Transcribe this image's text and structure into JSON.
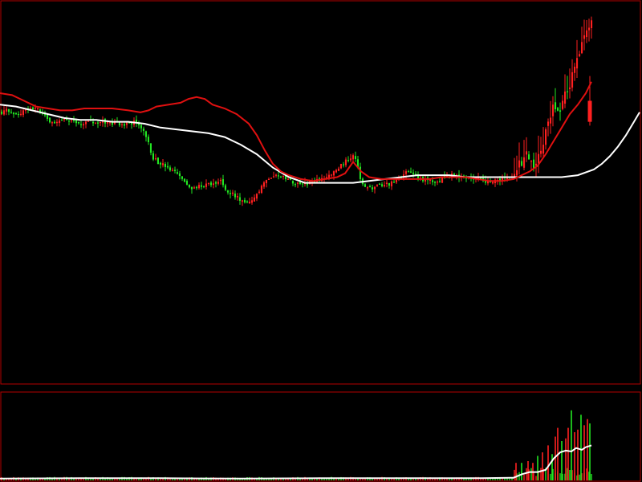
{
  "chart_data": {
    "type": "candlestick",
    "colors": {
      "background": "#000000",
      "frame": "#b40000",
      "up": "#ff2020",
      "down": "#22e622",
      "ma_long": "#ffffff",
      "ma_short": "#e01010",
      "volume_avg": "#ffffff"
    },
    "grid": false,
    "legend": false,
    "price_ylim": [
      0,
      100
    ],
    "volume_ylim": [
      0,
      100
    ],
    "bar_count": 246,
    "close_anchors": [
      [
        0,
        71
      ],
      [
        10,
        71.5
      ],
      [
        20,
        70.5
      ],
      [
        30,
        71.5
      ],
      [
        40,
        72
      ],
      [
        45,
        72.5
      ],
      [
        50,
        71
      ],
      [
        60,
        69
      ],
      [
        70,
        68.5
      ],
      [
        80,
        69
      ],
      [
        90,
        69
      ],
      [
        100,
        68
      ],
      [
        110,
        68.5
      ],
      [
        120,
        68
      ],
      [
        130,
        68.5
      ],
      [
        140,
        68
      ],
      [
        150,
        68
      ],
      [
        160,
        68
      ],
      [
        170,
        68.5
      ],
      [
        180,
        66
      ],
      [
        185,
        63
      ],
      [
        190,
        59
      ],
      [
        200,
        57.5
      ],
      [
        215,
        55.5
      ],
      [
        225,
        54
      ],
      [
        235,
        51
      ],
      [
        245,
        51.5
      ],
      [
        255,
        52
      ],
      [
        265,
        52
      ],
      [
        275,
        53
      ],
      [
        285,
        50
      ],
      [
        295,
        49
      ],
      [
        305,
        47
      ],
      [
        315,
        47.5
      ],
      [
        325,
        51
      ],
      [
        335,
        54
      ],
      [
        345,
        55
      ],
      [
        355,
        53.5
      ],
      [
        365,
        52.5
      ],
      [
        375,
        52
      ],
      [
        385,
        52.5
      ],
      [
        395,
        53
      ],
      [
        405,
        54
      ],
      [
        415,
        55
      ],
      [
        425,
        57
      ],
      [
        435,
        59
      ],
      [
        440,
        60
      ],
      [
        445,
        57.5
      ],
      [
        450,
        52
      ],
      [
        460,
        51
      ],
      [
        470,
        51.5
      ],
      [
        480,
        52
      ],
      [
        490,
        52.5
      ],
      [
        500,
        54
      ],
      [
        505,
        55
      ],
      [
        515,
        55
      ],
      [
        525,
        53.5
      ],
      [
        535,
        53
      ],
      [
        545,
        53
      ],
      [
        555,
        54
      ],
      [
        565,
        54.5
      ],
      [
        575,
        54
      ],
      [
        585,
        54
      ],
      [
        595,
        53.5
      ],
      [
        605,
        53
      ],
      [
        615,
        53
      ],
      [
        625,
        53.5
      ],
      [
        635,
        54
      ],
      [
        640,
        55
      ],
      [
        645,
        56
      ],
      [
        650,
        58
      ],
      [
        655,
        59.5
      ],
      [
        660,
        58
      ],
      [
        665,
        57
      ],
      [
        670,
        59
      ],
      [
        675,
        62
      ],
      [
        680,
        66
      ],
      [
        685,
        70
      ],
      [
        690,
        74
      ],
      [
        695,
        72
      ],
      [
        700,
        73
      ],
      [
        705,
        76
      ],
      [
        710,
        79
      ],
      [
        715,
        82
      ],
      [
        720,
        86
      ],
      [
        725,
        90
      ],
      [
        730,
        93
      ],
      [
        735,
        95
      ]
    ],
    "ma_short_anchors": [
      [
        0,
        76
      ],
      [
        15,
        75.5
      ],
      [
        30,
        74
      ],
      [
        45,
        72.5
      ],
      [
        60,
        72
      ],
      [
        75,
        71.5
      ],
      [
        90,
        71.5
      ],
      [
        105,
        72
      ],
      [
        120,
        72
      ],
      [
        140,
        72
      ],
      [
        160,
        71.5
      ],
      [
        175,
        71
      ],
      [
        185,
        71.5
      ],
      [
        195,
        72.5
      ],
      [
        210,
        73
      ],
      [
        225,
        73.5
      ],
      [
        235,
        74.5
      ],
      [
        245,
        75
      ],
      [
        255,
        74.5
      ],
      [
        265,
        73
      ],
      [
        280,
        72
      ],
      [
        295,
        70.5
      ],
      [
        310,
        68
      ],
      [
        320,
        65
      ],
      [
        330,
        61
      ],
      [
        340,
        57.5
      ],
      [
        350,
        55.5
      ],
      [
        360,
        54.5
      ],
      [
        375,
        53.5
      ],
      [
        390,
        53
      ],
      [
        405,
        53.5
      ],
      [
        420,
        54
      ],
      [
        430,
        55
      ],
      [
        440,
        58
      ],
      [
        450,
        55.5
      ],
      [
        460,
        54
      ],
      [
        475,
        53.5
      ],
      [
        490,
        53.5
      ],
      [
        505,
        53.5
      ],
      [
        520,
        53.5
      ],
      [
        535,
        53.5
      ],
      [
        550,
        54
      ],
      [
        565,
        54
      ],
      [
        580,
        54
      ],
      [
        595,
        53.5
      ],
      [
        610,
        53
      ],
      [
        625,
        53
      ],
      [
        640,
        53.5
      ],
      [
        650,
        54.5
      ],
      [
        660,
        55.5
      ],
      [
        670,
        57
      ],
      [
        680,
        60
      ],
      [
        690,
        63.5
      ],
      [
        700,
        67
      ],
      [
        710,
        70.5
      ],
      [
        720,
        73
      ],
      [
        730,
        76
      ],
      [
        737,
        79
      ]
    ],
    "ma_long_anchors": [
      [
        0,
        73
      ],
      [
        20,
        72.5
      ],
      [
        40,
        71.5
      ],
      [
        60,
        70.5
      ],
      [
        80,
        69.5
      ],
      [
        100,
        69
      ],
      [
        120,
        69
      ],
      [
        140,
        68.5
      ],
      [
        160,
        68.5
      ],
      [
        180,
        68
      ],
      [
        200,
        67
      ],
      [
        220,
        66.5
      ],
      [
        240,
        66
      ],
      [
        260,
        65.5
      ],
      [
        280,
        64.5
      ],
      [
        300,
        62.5
      ],
      [
        320,
        60
      ],
      [
        340,
        56.5
      ],
      [
        360,
        54
      ],
      [
        380,
        52.5
      ],
      [
        400,
        52.5
      ],
      [
        420,
        52.5
      ],
      [
        440,
        52.5
      ],
      [
        460,
        53
      ],
      [
        480,
        53.5
      ],
      [
        500,
        54
      ],
      [
        520,
        54.5
      ],
      [
        540,
        54.5
      ],
      [
        560,
        54.5
      ],
      [
        580,
        54
      ],
      [
        600,
        54
      ],
      [
        620,
        54
      ],
      [
        640,
        54
      ],
      [
        660,
        54
      ],
      [
        680,
        54
      ],
      [
        700,
        54
      ],
      [
        720,
        54.5
      ],
      [
        740,
        56
      ],
      [
        750,
        57.5
      ],
      [
        760,
        59.5
      ],
      [
        770,
        62
      ],
      [
        780,
        65
      ],
      [
        790,
        68.5
      ],
      [
        797,
        71
      ]
    ],
    "volume_base": 2,
    "volume_spikes": [
      [
        643,
        20
      ],
      [
        650,
        20
      ],
      [
        658,
        22
      ],
      [
        664,
        20
      ],
      [
        670,
        28
      ],
      [
        676,
        32
      ],
      [
        683,
        40
      ],
      [
        688,
        30
      ],
      [
        692,
        50
      ],
      [
        695,
        60
      ],
      [
        700,
        45
      ],
      [
        705,
        48
      ],
      [
        708,
        60
      ],
      [
        712,
        80
      ],
      [
        716,
        55
      ],
      [
        720,
        58
      ],
      [
        724,
        75
      ],
      [
        728,
        63
      ],
      [
        732,
        70
      ],
      [
        735,
        65
      ]
    ],
    "volume_avg_anchors": [
      [
        0,
        2
      ],
      [
        100,
        2.5
      ],
      [
        200,
        2.5
      ],
      [
        300,
        2
      ],
      [
        400,
        2.5
      ],
      [
        500,
        2.5
      ],
      [
        600,
        2.5
      ],
      [
        640,
        3
      ],
      [
        650,
        7
      ],
      [
        660,
        9.5
      ],
      [
        670,
        9.5
      ],
      [
        680,
        12
      ],
      [
        690,
        25
      ],
      [
        698,
        32
      ],
      [
        705,
        34
      ],
      [
        712,
        33
      ],
      [
        718,
        37
      ],
      [
        725,
        35
      ],
      [
        730,
        38
      ],
      [
        737,
        40
      ]
    ]
  }
}
